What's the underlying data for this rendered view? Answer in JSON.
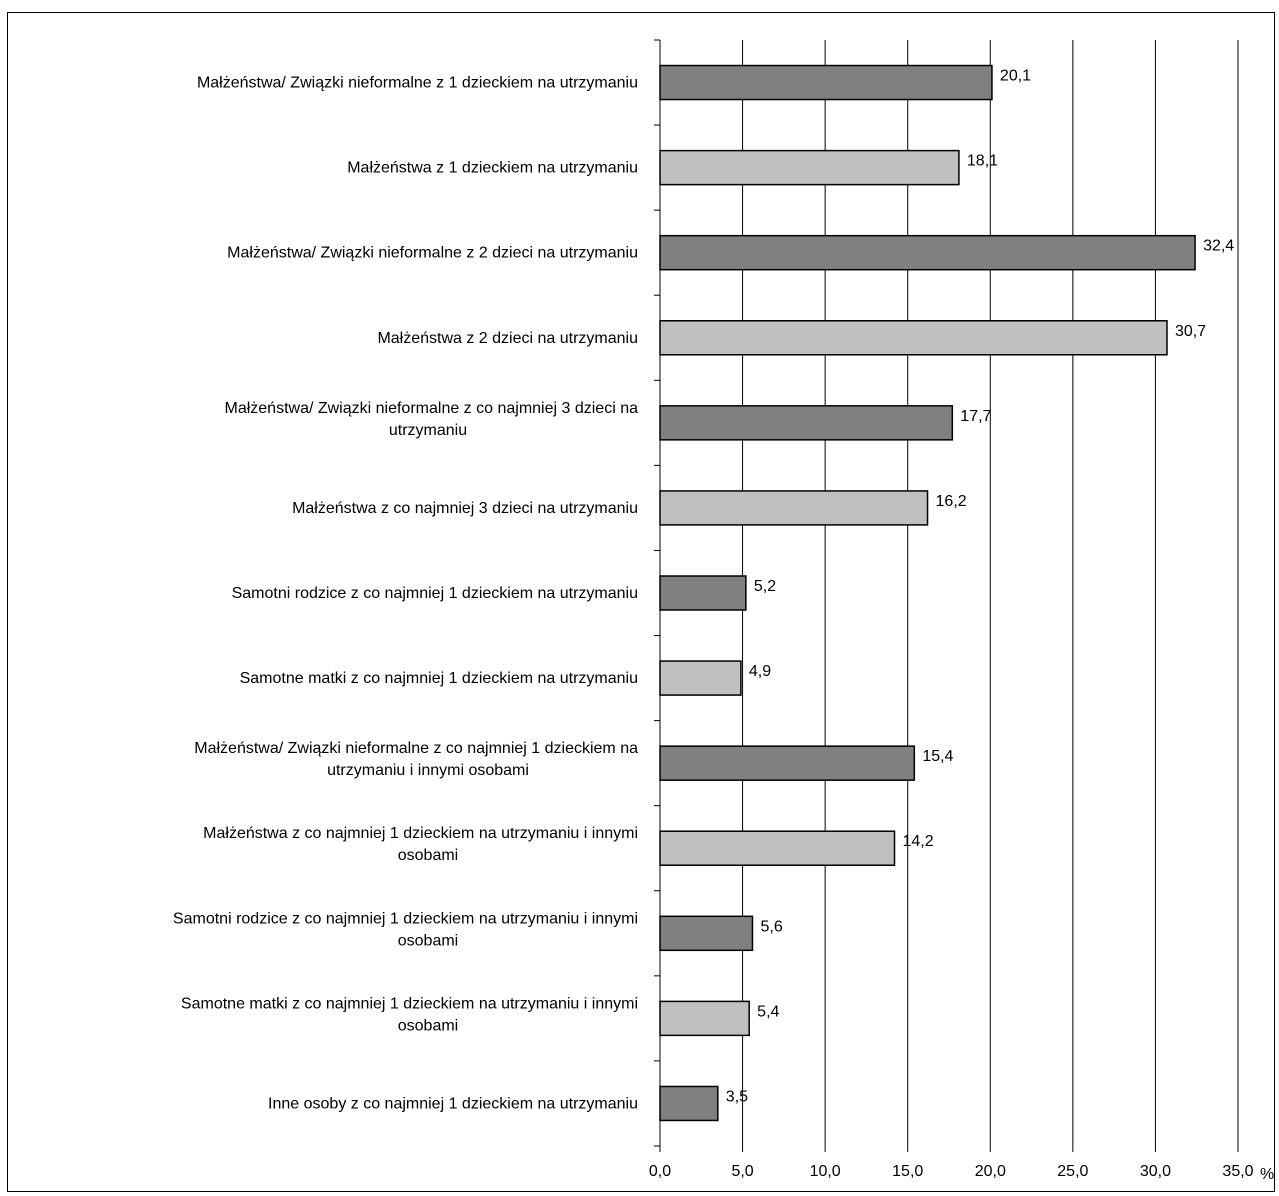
{
  "chart_data": {
    "type": "bar",
    "orientation": "horizontal",
    "title": "",
    "xlabel": "",
    "ylabel": "",
    "x_unit": "%",
    "xlim": [
      0,
      35
    ],
    "x_ticks": [
      "0,0",
      "5,0",
      "10,0",
      "15,0",
      "20,0",
      "25,0",
      "30,0",
      "35,0"
    ],
    "grid": "vertical",
    "legend": "none",
    "colors": {
      "dark": "#808080",
      "light": "#c0c0c0",
      "grid": "#000000"
    },
    "categories": [
      [
        "Małżeństwa/ Związki nieformalne z 1 dzieckiem na utrzymaniu"
      ],
      [
        "Małżeństwa z 1 dzieckiem na utrzymaniu"
      ],
      [
        "Małżeństwa/ Związki nieformalne z 2 dzieci na utrzymaniu"
      ],
      [
        "Małżeństwa z 2 dzieci na utrzymaniu"
      ],
      [
        "Małżeństwa/ Związki nieformalne z co najmniej 3 dzieci na",
        "utrzymaniu"
      ],
      [
        "Małżeństwa z co najmniej 3 dzieci na utrzymaniu"
      ],
      [
        "Samotni rodzice z co najmniej 1 dzieckiem na utrzymaniu"
      ],
      [
        "Samotne matki z co najmniej 1 dzieckiem na utrzymaniu"
      ],
      [
        "Małżeństwa/ Związki nieformalne z co najmniej 1 dzieckiem na",
        "utrzymaniu i innymi osobami"
      ],
      [
        "Małżeństwa z co najmniej 1 dzieckiem na utrzymaniu i innymi",
        "osobami"
      ],
      [
        "Samotni rodzice z co najmniej 1 dzieckiem na utrzymaniu i innymi",
        "osobami"
      ],
      [
        "Samotne matki z co najmniej 1 dzieckiem na utrzymaniu i innymi",
        "osobami"
      ],
      [
        "Inne osoby z co najmniej 1 dzieckiem na utrzymaniu"
      ]
    ],
    "values": [
      20.1,
      18.1,
      32.4,
      30.7,
      17.7,
      16.2,
      5.2,
      4.9,
      15.4,
      14.2,
      5.6,
      5.4,
      3.5
    ],
    "value_labels": [
      "20,1",
      "18,1",
      "32,4",
      "30,7",
      "17,7",
      "16,2",
      "5,2",
      "4,9",
      "15,4",
      "14,2",
      "5,6",
      "5,4",
      "3,5"
    ],
    "bar_shades": [
      "dark",
      "light",
      "dark",
      "light",
      "dark",
      "light",
      "dark",
      "light",
      "dark",
      "light",
      "dark",
      "light",
      "dark"
    ]
  }
}
